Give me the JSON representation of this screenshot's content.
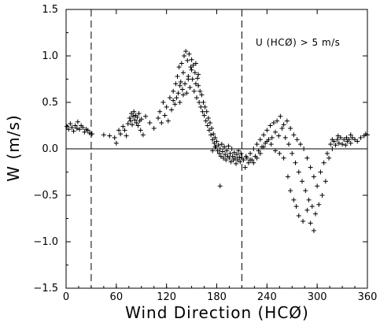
{
  "chart_data": {
    "type": "scatter",
    "title": "",
    "xlabel": "Wind Direction (HCØ)",
    "ylabel": "W (m/s)",
    "annotation": "U (HCØ) > 5 m/s",
    "xlim": [
      0,
      360
    ],
    "ylim": [
      -1.5,
      1.5
    ],
    "x_ticks": [
      0,
      60,
      120,
      180,
      240,
      300,
      360
    ],
    "x_tick_labels": [
      "0",
      "60",
      "120",
      "180",
      "240",
      "300",
      "360"
    ],
    "y_ticks": [
      1.5,
      1.0,
      0.5,
      0.0,
      -0.5,
      -1.0,
      -1.5
    ],
    "y_tick_labels": [
      "1.5",
      "1.0",
      "0.5",
      "0.0",
      "−0.5",
      "−1.0",
      "−1.5"
    ],
    "reference_lines": {
      "horizontal_y": 0.0,
      "vertical_dashed_x": [
        30,
        210
      ]
    },
    "grid": false,
    "marker": "+",
    "colors": {
      "points": "#000000",
      "axes": "#000000"
    },
    "series": [
      {
        "points": [
          [
            1,
            0.24
          ],
          [
            3,
            0.21
          ],
          [
            5,
            0.27
          ],
          [
            7,
            0.23
          ],
          [
            9,
            0.19
          ],
          [
            11,
            0.25
          ],
          [
            13,
            0.22
          ],
          [
            14,
            0.29
          ],
          [
            16,
            0.21
          ],
          [
            18,
            0.25
          ],
          [
            20,
            0.23
          ],
          [
            22,
            0.18
          ],
          [
            24,
            0.21
          ],
          [
            26,
            0.2
          ],
          [
            28,
            0.17
          ],
          [
            31,
            0.16
          ],
          [
            45,
            0.15
          ],
          [
            52,
            0.14
          ],
          [
            58,
            0.12
          ],
          [
            60,
            0.06
          ],
          [
            63,
            0.2
          ],
          [
            65,
            0.16
          ],
          [
            68,
            0.24
          ],
          [
            70,
            0.2
          ],
          [
            72,
            0.14
          ],
          [
            74,
            0.27
          ],
          [
            76,
            0.33
          ],
          [
            77,
            0.3
          ],
          [
            78,
            0.38
          ],
          [
            79,
            0.26
          ],
          [
            80,
            0.35
          ],
          [
            81,
            0.4
          ],
          [
            82,
            0.31
          ],
          [
            83,
            0.36
          ],
          [
            84,
            0.28
          ],
          [
            85,
            0.34
          ],
          [
            86,
            0.25
          ],
          [
            87,
            0.38
          ],
          [
            88,
            0.3
          ],
          [
            89,
            0.2
          ],
          [
            90,
            0.32
          ],
          [
            92,
            0.15
          ],
          [
            95,
            0.35
          ],
          [
            100,
            0.28
          ],
          [
            105,
            0.22
          ],
          [
            110,
            0.33
          ],
          [
            112,
            0.4
          ],
          [
            114,
            0.28
          ],
          [
            116,
            0.5
          ],
          [
            118,
            0.36
          ],
          [
            120,
            0.45
          ],
          [
            122,
            0.3
          ],
          [
            124,
            0.55
          ],
          [
            126,
            0.42
          ],
          [
            128,
            0.62
          ],
          [
            130,
            0.48
          ],
          [
            131,
            0.7
          ],
          [
            132,
            0.55
          ],
          [
            133,
            0.78
          ],
          [
            134,
            0.6
          ],
          [
            135,
            0.88
          ],
          [
            136,
            0.5
          ],
          [
            137,
            0.72
          ],
          [
            138,
            0.92
          ],
          [
            139,
            0.64
          ],
          [
            140,
            0.82
          ],
          [
            141,
            1.0
          ],
          [
            142,
            0.7
          ],
          [
            143,
            1.05
          ],
          [
            144,
            0.6
          ],
          [
            145,
            0.95
          ],
          [
            146,
            0.78
          ],
          [
            147,
            1.02
          ],
          [
            148,
            0.66
          ],
          [
            149,
            0.88
          ],
          [
            150,
            0.96
          ],
          [
            151,
            0.75
          ],
          [
            152,
            0.9
          ],
          [
            153,
            0.62
          ],
          [
            154,
            0.82
          ],
          [
            155,
            0.7
          ],
          [
            156,
            0.55
          ],
          [
            157,
            0.76
          ],
          [
            158,
            0.68
          ],
          [
            159,
            0.5
          ],
          [
            160,
            0.62
          ],
          [
            161,
            0.45
          ],
          [
            162,
            0.58
          ],
          [
            163,
            0.4
          ],
          [
            164,
            0.5
          ],
          [
            165,
            0.36
          ],
          [
            166,
            0.45
          ],
          [
            167,
            0.3
          ],
          [
            168,
            0.4
          ],
          [
            169,
            0.25
          ],
          [
            170,
            0.33
          ],
          [
            171,
            0.2
          ],
          [
            172,
            0.28
          ],
          [
            173,
            0.15
          ],
          [
            174,
            0.22
          ],
          [
            175,
            0.1
          ],
          [
            176,
            0.16
          ],
          [
            177,
            0.06
          ],
          [
            178,
            0.12
          ],
          [
            179,
            0.02
          ],
          [
            180,
            0.08
          ],
          [
            181,
            -0.02
          ],
          [
            182,
            0.04
          ],
          [
            183,
            -0.05
          ],
          [
            184,
            0.0
          ],
          [
            185,
            -0.08
          ],
          [
            186,
            0.05
          ],
          [
            187,
            -0.03
          ],
          [
            188,
            -0.1
          ],
          [
            189,
            0.02
          ],
          [
            190,
            -0.06
          ],
          [
            191,
            -0.12
          ],
          [
            192,
            -0.02
          ],
          [
            193,
            -0.08
          ],
          [
            194,
            0.03
          ],
          [
            195,
            -0.1
          ],
          [
            196,
            -0.05
          ],
          [
            197,
            -0.14
          ],
          [
            198,
            0.0
          ],
          [
            199,
            -0.08
          ],
          [
            200,
            -0.12
          ],
          [
            201,
            -0.04
          ],
          [
            202,
            -0.1
          ],
          [
            203,
            -0.16
          ],
          [
            204,
            -0.06
          ],
          [
            205,
            -0.12
          ],
          [
            206,
            -0.02
          ],
          [
            207,
            -0.09
          ],
          [
            208,
            -0.14
          ],
          [
            209,
            -0.05
          ],
          [
            210,
            -0.1
          ],
          [
            184,
            -0.4
          ],
          [
            175,
            -0.02
          ],
          [
            178,
            0.02
          ],
          [
            146,
            0.75
          ],
          [
            140,
            0.58
          ],
          [
            136,
            0.68
          ],
          [
            128,
            0.52
          ],
          [
            150,
            0.85
          ],
          [
            155,
            0.92
          ],
          [
            158,
            0.8
          ],
          [
            212,
            -0.12
          ],
          [
            214,
            -0.2
          ],
          [
            216,
            -0.1
          ],
          [
            218,
            -0.15
          ],
          [
            220,
            -0.05
          ],
          [
            222,
            -0.12
          ],
          [
            224,
            0.0
          ],
          [
            226,
            -0.08
          ],
          [
            228,
            0.05
          ],
          [
            230,
            -0.02
          ],
          [
            232,
            0.1
          ],
          [
            234,
            0.02
          ],
          [
            236,
            0.15
          ],
          [
            238,
            0.06
          ],
          [
            240,
            0.2
          ],
          [
            242,
            0.1
          ],
          [
            244,
            0.25
          ],
          [
            246,
            0.12
          ],
          [
            248,
            0.28
          ],
          [
            250,
            0.18
          ],
          [
            252,
            0.3
          ],
          [
            254,
            0.14
          ],
          [
            256,
            0.35
          ],
          [
            258,
            0.22
          ],
          [
            260,
            0.26
          ],
          [
            262,
            0.12
          ],
          [
            264,
            0.3
          ],
          [
            266,
            0.05
          ],
          [
            268,
            0.22
          ],
          [
            270,
            -0.05
          ],
          [
            272,
            0.15
          ],
          [
            274,
            -0.15
          ],
          [
            276,
            0.1
          ],
          [
            278,
            -0.25
          ],
          [
            280,
            0.05
          ],
          [
            282,
            -0.35
          ],
          [
            284,
            0.0
          ],
          [
            286,
            -0.45
          ],
          [
            288,
            -0.1
          ],
          [
            290,
            -0.55
          ],
          [
            292,
            -0.2
          ],
          [
            294,
            -0.62
          ],
          [
            296,
            -0.3
          ],
          [
            298,
            -0.7
          ],
          [
            300,
            -0.4
          ],
          [
            302,
            -0.6
          ],
          [
            304,
            -0.25
          ],
          [
            306,
            -0.5
          ],
          [
            308,
            -0.15
          ],
          [
            310,
            -0.35
          ],
          [
            312,
            -0.05
          ],
          [
            314,
            -0.1
          ],
          [
            316,
            0.05
          ],
          [
            318,
            0.0
          ],
          [
            320,
            0.08
          ],
          [
            322,
            0.04
          ],
          [
            324,
            0.1
          ],
          [
            326,
            0.06
          ],
          [
            328,
            0.12
          ],
          [
            330,
            0.05
          ],
          [
            332,
            0.1
          ],
          [
            334,
            0.04
          ],
          [
            336,
            0.08
          ],
          [
            338,
            0.1
          ],
          [
            340,
            0.06
          ],
          [
            342,
            0.12
          ],
          [
            345,
            0.1
          ],
          [
            348,
            0.08
          ],
          [
            352,
            0.12
          ],
          [
            356,
            0.14
          ],
          [
            358,
            0.16
          ],
          [
            360,
            0.15
          ],
          [
            340,
            0.15
          ],
          [
            335,
            0.12
          ],
          [
            325,
            0.14
          ],
          [
            318,
            0.1
          ],
          [
            260,
            -0.1
          ],
          [
            265,
            -0.3
          ],
          [
            268,
            -0.45
          ],
          [
            272,
            -0.55
          ],
          [
            275,
            -0.62
          ],
          [
            278,
            -0.72
          ],
          [
            283,
            -0.78
          ],
          [
            288,
            -0.66
          ],
          [
            292,
            -0.8
          ],
          [
            296,
            -0.88
          ],
          [
            255,
            -0.05
          ],
          [
            250,
            -0.02
          ],
          [
            245,
            0.05
          ],
          [
            240,
            0.08
          ],
          [
            236,
            0.02
          ],
          [
            232,
            -0.05
          ],
          [
            228,
            -0.1
          ],
          [
            224,
            -0.15
          ],
          [
            220,
            -0.12
          ],
          [
            215,
            -0.08
          ]
        ]
      }
    ]
  }
}
